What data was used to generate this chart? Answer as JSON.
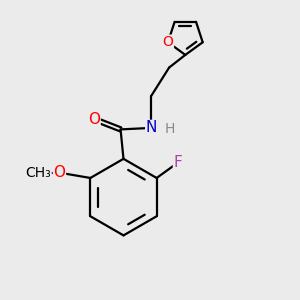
{
  "background_color": "#ebebeb",
  "bond_color": "#000000",
  "bond_width": 1.6,
  "atom_colors": {
    "O": "#ff0000",
    "N": "#0000cc",
    "F": "#aa44aa",
    "H": "#888888",
    "C": "#000000"
  },
  "font_size_atoms": 11,
  "font_size_h": 10
}
